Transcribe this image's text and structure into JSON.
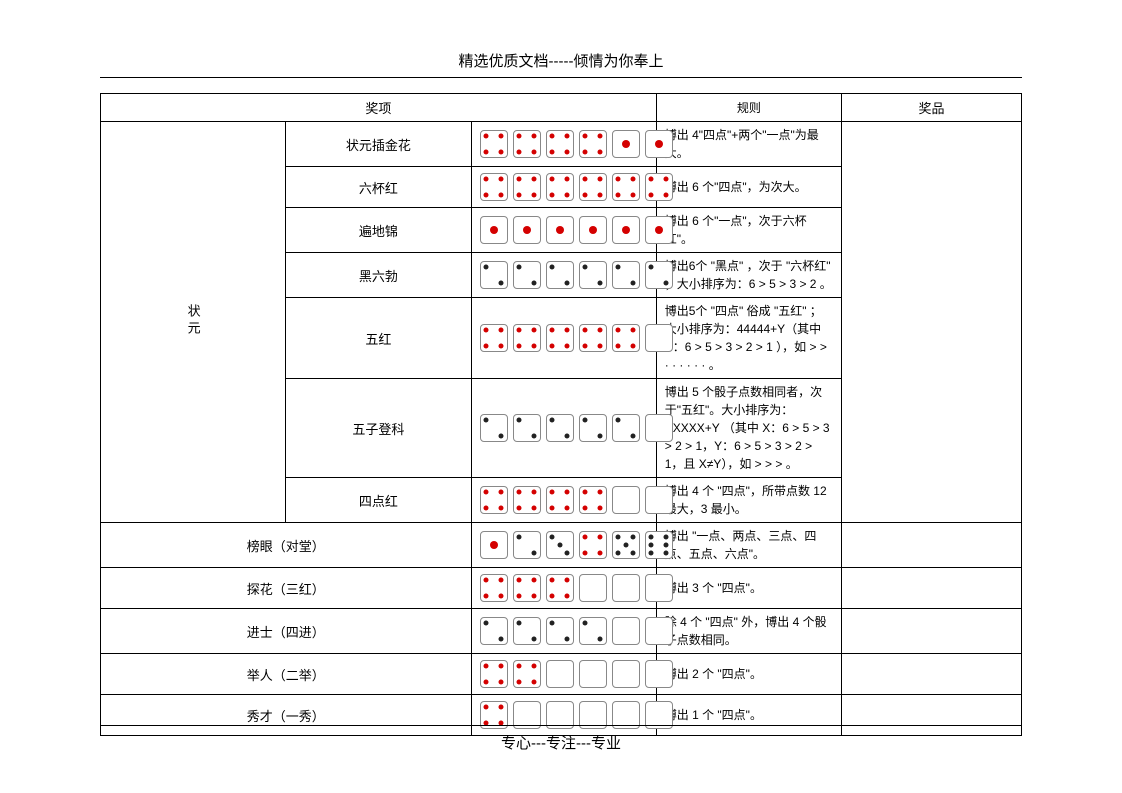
{
  "header_text": "精选优质文档-----倾情为你奉上",
  "footer_text": "专心---专注---专业",
  "columns": {
    "award": "奖项",
    "rule": "规则",
    "prize": "奖品"
  },
  "category_vertical": "状元",
  "colors": {
    "pip_red": "#d40000",
    "pip_black": "#222222",
    "die_border": "#888888",
    "table_border": "#000000",
    "background": "#ffffff",
    "text": "#000000"
  },
  "die_faces": {
    "1": {
      "pips": [
        "c"
      ],
      "color": "red",
      "big": true
    },
    "2": {
      "pips": [
        "tl",
        "br"
      ],
      "color": "black"
    },
    "2b": {
      "pips": [
        "tl",
        "br"
      ],
      "color": "black"
    },
    "3": {
      "pips": [
        "tl",
        "c",
        "br"
      ],
      "color": "black"
    },
    "4": {
      "pips": [
        "tl",
        "tr",
        "bl",
        "br"
      ],
      "color": "red"
    },
    "5": {
      "pips": [
        "tl",
        "tr",
        "c",
        "bl",
        "br"
      ],
      "color": "black"
    },
    "6": {
      "pips": [
        "tl",
        "tr",
        "ml",
        "mr",
        "bl",
        "br"
      ],
      "color": "black"
    },
    "blank": {
      "pips": [],
      "color": "black"
    }
  },
  "rows": [
    {
      "group": "状元",
      "name": "状元插金花",
      "dice": [
        "4",
        "4",
        "4",
        "4",
        "1",
        "1"
      ],
      "rule": "博出 4\"四点\"+两个\"一点\"为最大。"
    },
    {
      "group": "状元",
      "name": "六杯红",
      "dice": [
        "4",
        "4",
        "4",
        "4",
        "4",
        "4"
      ],
      "rule": "博出 6 个\"四点\"，为次大。"
    },
    {
      "group": "状元",
      "name": "遍地锦",
      "dice": [
        "1",
        "1",
        "1",
        "1",
        "1",
        "1"
      ],
      "rule": "博出 6 个\"一点\"，次于六杯红\"。"
    },
    {
      "group": "状元",
      "name": "黑六勃",
      "dice": [
        "2",
        "2",
        "2",
        "2",
        "2",
        "2"
      ],
      "rule": "博出6个 \"黑点\" ，次于 \"六杯红\" ；大小排序为：6 > 5 > 3 > 2 。"
    },
    {
      "group": "状元",
      "name": "五红",
      "dice": [
        "4",
        "4",
        "4",
        "4",
        "4",
        "blank"
      ],
      "rule": "博出5个 \"四点\" 俗成 \"五红\" ；大小排序为：44444+Y（其中Y：6 > 5 > 3 > 2 > 1 ），如 > > · · · · · · 。"
    },
    {
      "group": "状元",
      "name": "五子登科",
      "dice": [
        "2",
        "2",
        "2",
        "2",
        "2",
        "blank"
      ],
      "rule": "博出 5 个骰子点数相同者，次于\"五红\"。大小排序为：XXXXX+Y （其中 X：6 > 5 > 3 > 2 > 1，Y：6 > 5 > 3 > 2 > 1，且 X≠Y），如 > > > 。"
    },
    {
      "group": "状元",
      "name": "四点红",
      "dice": [
        "4",
        "4",
        "4",
        "4",
        "blank",
        "blank"
      ],
      "rule": "博出 4 个 \"四点\"，所带点数 12 最大，3 最小。"
    },
    {
      "group": null,
      "name": "榜眼（对堂）",
      "dice": [
        "1",
        "2",
        "3",
        "4",
        "5",
        "6"
      ],
      "rule": "博出 \"一点、两点、三点、四点、五点、六点\"。"
    },
    {
      "group": null,
      "name": "探花（三红）",
      "dice": [
        "4",
        "4",
        "4",
        "blank",
        "blank",
        "blank"
      ],
      "rule": "博出 3 个 \"四点\"。"
    },
    {
      "group": null,
      "name": "进士（四进）",
      "dice": [
        "2",
        "2",
        "2",
        "2",
        "blank",
        "blank"
      ],
      "rule": "除 4 个 \"四点\" 外，博出 4 个骰子点数相同。"
    },
    {
      "group": null,
      "name": "举人（二举）",
      "dice": [
        "4",
        "4",
        "blank",
        "blank",
        "blank",
        "blank"
      ],
      "rule": "博出 2 个 \"四点\"。"
    },
    {
      "group": null,
      "name": "秀才（一秀）",
      "dice": [
        "4",
        "blank",
        "blank",
        "blank",
        "blank",
        "blank"
      ],
      "rule": "博出 1 个 \"四点\"。"
    }
  ]
}
